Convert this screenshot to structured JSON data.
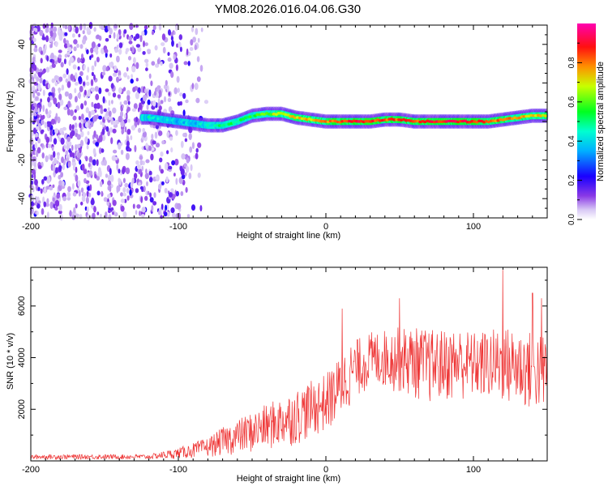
{
  "title": "YM08.2026.016.04.06.G30",
  "chart_data": [
    {
      "type": "heatmap",
      "name": "spectrogram",
      "xlabel": "Height of straight line (km)",
      "ylabel": "Frequency (Hz)",
      "xlim": [
        -200,
        150
      ],
      "ylim": [
        -50,
        50
      ],
      "xticks": [
        -200,
        -100,
        0,
        100
      ],
      "yticks": [
        -40,
        -20,
        0,
        20,
        40
      ],
      "grid": false,
      "colorbar": {
        "label": "Normalized spectral amplitude",
        "range": [
          0,
          1
        ],
        "ticks": [
          0.0,
          0.2,
          0.4,
          0.6,
          0.8
        ],
        "tick_labels": [
          "0.0",
          "0.2",
          "0.4",
          "0.6",
          "0.8"
        ],
        "colormap": [
          "#ffffff",
          "#e0cff7",
          "#8a3ae6",
          "#1a00ff",
          "#00e5ff",
          "#00ff40",
          "#c8ff00",
          "#ff8000",
          "#ff0000",
          "#ff00c0"
        ]
      },
      "ridge": {
        "x": [
          -120,
          -110,
          -100,
          -90,
          -80,
          -70,
          -60,
          -50,
          -40,
          -30,
          -20,
          -10,
          0,
          10,
          20,
          30,
          40,
          50,
          60,
          70,
          80,
          90,
          100,
          110,
          120,
          130,
          140,
          150
        ],
        "frequency": [
          2,
          1,
          0,
          -1,
          -2,
          -2,
          0,
          3,
          4,
          4,
          2,
          1,
          0,
          0,
          0,
          0,
          1,
          1,
          0,
          0,
          0,
          0,
          0,
          0,
          1,
          2,
          3,
          3
        ],
        "amplitude": [
          0.45,
          0.4,
          0.4,
          0.4,
          0.45,
          0.5,
          0.55,
          0.55,
          0.65,
          0.7,
          0.75,
          0.75,
          0.8,
          0.85,
          0.9,
          0.9,
          0.85,
          0.85,
          0.85,
          0.9,
          0.9,
          0.9,
          0.9,
          0.85,
          0.8,
          0.8,
          0.75,
          0.7
        ]
      }
    },
    {
      "type": "line",
      "name": "snr",
      "xlabel": "Height of straight line (km)",
      "ylabel": "SNR (10 * v/v)",
      "xlim": [
        -200,
        150
      ],
      "ylim": [
        0,
        7500
      ],
      "xticks": [
        -200,
        -100,
        0,
        100
      ],
      "yticks": [
        2000,
        4000,
        6000
      ],
      "color": "#ee3333",
      "grid": false,
      "envelope": {
        "x": [
          -200,
          -180,
          -160,
          -140,
          -120,
          -100,
          -90,
          -80,
          -70,
          -60,
          -50,
          -40,
          -30,
          -20,
          -10,
          0,
          5,
          10,
          15,
          20,
          30,
          40,
          50,
          60,
          70,
          80,
          90,
          100,
          110,
          120,
          130,
          140,
          150
        ],
        "low": [
          60,
          60,
          60,
          60,
          60,
          80,
          100,
          150,
          200,
          250,
          300,
          400,
          500,
          600,
          900,
          1100,
          1300,
          1500,
          2000,
          2400,
          2800,
          2800,
          2600,
          2400,
          2200,
          2300,
          2300,
          2400,
          2300,
          2200,
          2000,
          1900,
          1800
        ],
        "high": [
          240,
          250,
          250,
          250,
          250,
          500,
          700,
          900,
          1300,
          1600,
          1900,
          2200,
          2500,
          2800,
          3100,
          3400,
          3700,
          4100,
          4500,
          4700,
          5000,
          5100,
          5200,
          5200,
          5100,
          5100,
          5200,
          5000,
          5100,
          5200,
          5200,
          5000,
          5000
        ]
      },
      "peaks": [
        {
          "x": 11,
          "y": 5900
        },
        {
          "x": 50,
          "y": 6300
        },
        {
          "x": 120,
          "y": 7400
        },
        {
          "x": 140,
          "y": 6500
        },
        {
          "x": 146,
          "y": 6300
        }
      ]
    }
  ]
}
